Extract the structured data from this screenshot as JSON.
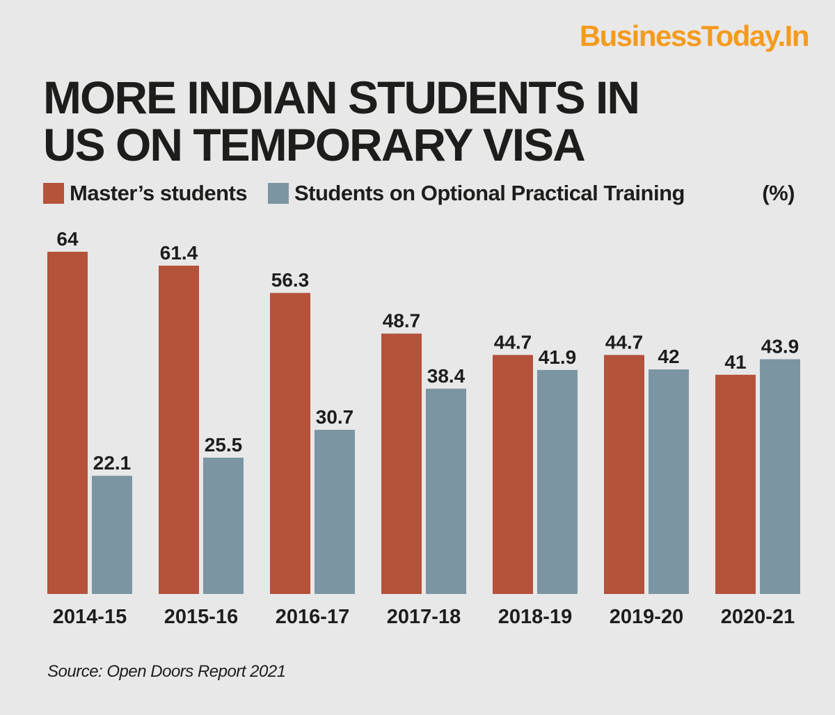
{
  "brand": "BusinessToday.In",
  "title_lines": [
    "MORE INDIAN STUDENTS IN",
    "US ON TEMPORARY VISA"
  ],
  "unit": "(%)",
  "source": "Source: Open Doors Report 2021",
  "colors": {
    "masters": "#b5523a",
    "opt": "#7b95a2",
    "text": "#1d1d1b",
    "background": "#e8e8e9",
    "brand": "#f49b1c"
  },
  "chart_data": {
    "type": "bar",
    "title": "MORE INDIAN STUDENTS IN US ON TEMPORARY VISA",
    "categories": [
      "2014-15",
      "2015-16",
      "2016-17",
      "2017-18",
      "2018-19",
      "2019-20",
      "2020-21"
    ],
    "series": [
      {
        "name": "Master’s students",
        "values": [
          64,
          61.4,
          56.3,
          48.7,
          44.7,
          44.7,
          41
        ]
      },
      {
        "name": "Students on Optional Practical Training",
        "values": [
          22.1,
          25.5,
          30.7,
          38.4,
          41.9,
          42,
          43.9
        ]
      }
    ],
    "ylim": [
      0,
      64
    ],
    "ylabel": "(%)",
    "xlabel": "",
    "grid": false,
    "legend": "top-left",
    "data_labels": true
  }
}
